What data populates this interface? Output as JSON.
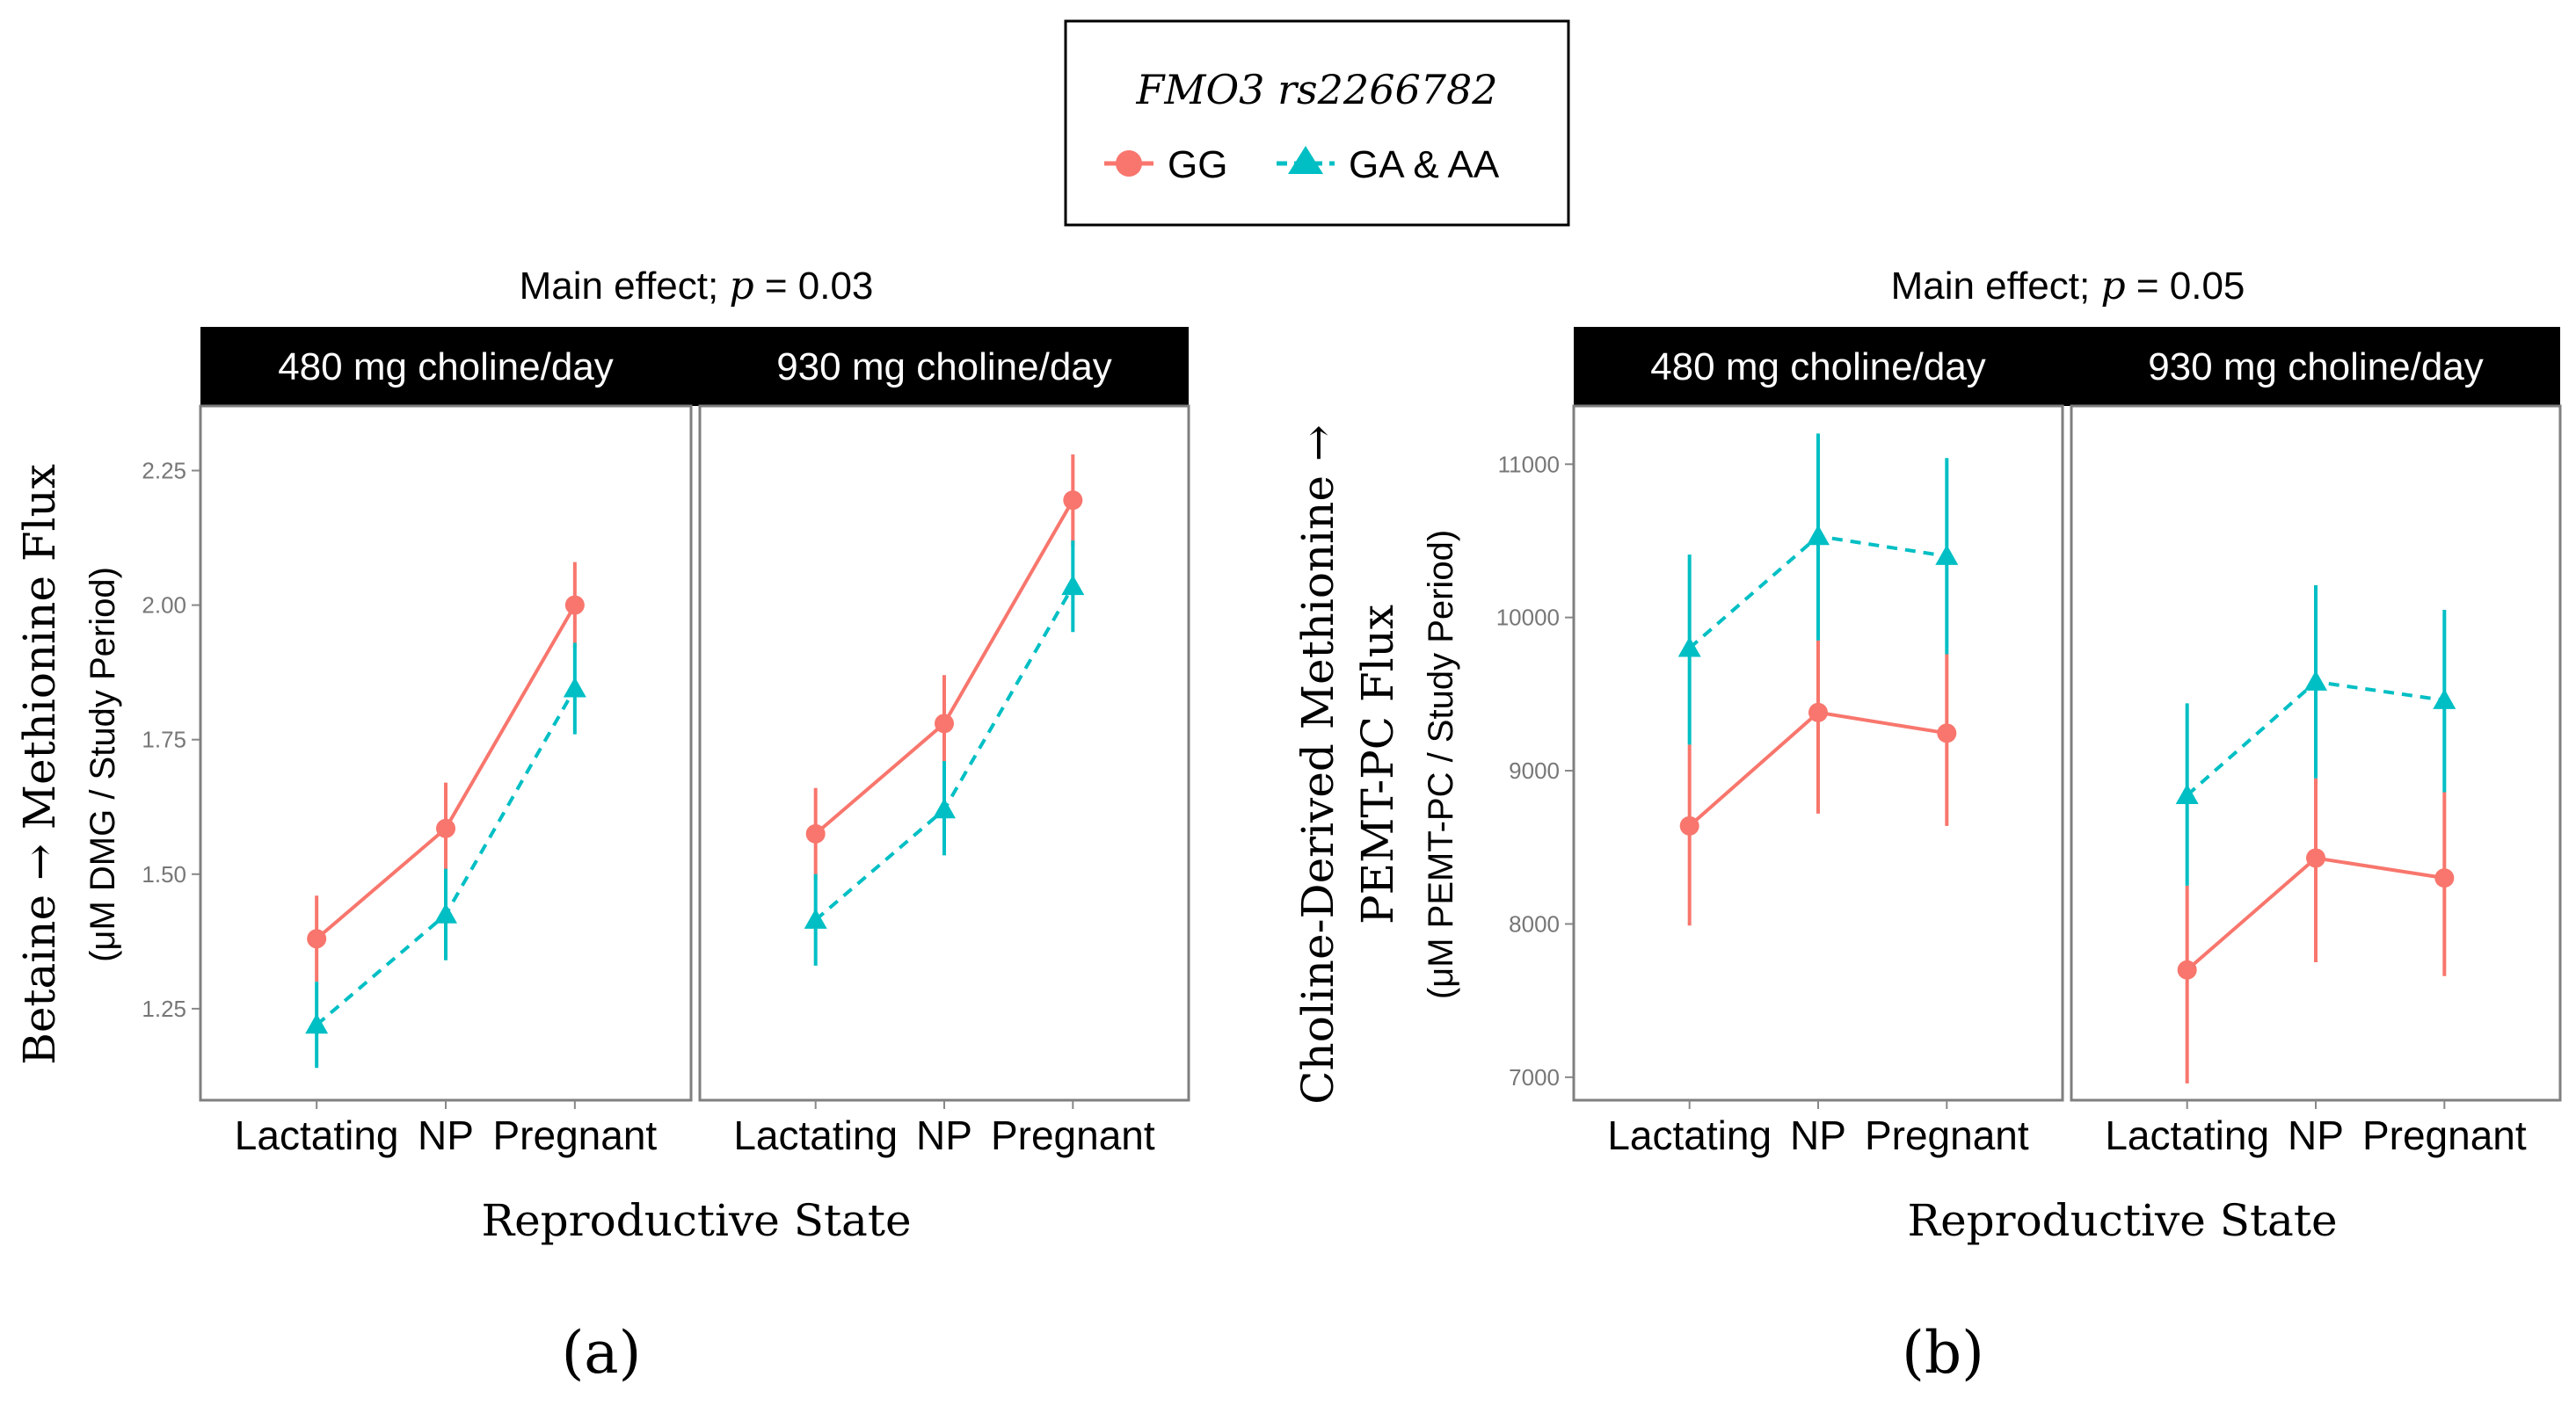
{
  "legend": {
    "title": "FMO3 rs2266782",
    "entries": [
      {
        "label": "GG",
        "color": "#F8766D",
        "marker": "circle",
        "line": "solid"
      },
      {
        "label": "GA & AA",
        "color": "#00BFC4",
        "marker": "triangle",
        "line": "dashed"
      }
    ]
  },
  "chart_data": [
    {
      "type": "line",
      "panel_label": "(a)",
      "title_prefix": "Main effect; ",
      "title_p": "p",
      "title_suffix": " = 0.03",
      "facets": [
        "480 mg choline/day",
        "930 mg choline/day"
      ],
      "categories": [
        "Lactating",
        "NP",
        "Pregnant"
      ],
      "xlabel": "Reproductive State",
      "ylabel_main": "Betaine → Methionine Flux",
      "ylabel_sub": "(μM DMG / Study Period)",
      "ylim": [
        1.08,
        2.37
      ],
      "yticks": [
        1.25,
        1.5,
        1.75,
        2.0,
        2.25
      ],
      "ytick_labels": [
        "1.25",
        "1.50",
        "1.75",
        "2.00",
        "2.25"
      ],
      "series": [
        {
          "name": "GG",
          "facets": [
            {
              "values": [
                1.38,
                1.585,
                2.0
              ],
              "lower": [
                1.3,
                1.5,
                1.92
              ],
              "upper": [
                1.46,
                1.67,
                2.08
              ]
            },
            {
              "values": [
                1.575,
                1.78,
                2.195
              ],
              "lower": [
                1.49,
                1.69,
                2.11
              ],
              "upper": [
                1.66,
                1.87,
                2.28
              ]
            }
          ]
        },
        {
          "name": "GA & AA",
          "facets": [
            {
              "values": [
                1.22,
                1.425,
                1.845
              ],
              "lower": [
                1.14,
                1.34,
                1.76
              ],
              "upper": [
                1.3,
                1.51,
                1.93
              ]
            },
            {
              "values": [
                1.415,
                1.62,
                2.035
              ],
              "lower": [
                1.33,
                1.535,
                1.95
              ],
              "upper": [
                1.5,
                1.71,
                2.12
              ]
            }
          ]
        }
      ]
    },
    {
      "type": "line",
      "panel_label": "(b)",
      "title_prefix": "Main effect; ",
      "title_p": "p",
      "title_suffix": " = 0.05",
      "facets": [
        "480 mg choline/day",
        "930 mg choline/day"
      ],
      "categories": [
        "Lactating",
        "NP",
        "Pregnant"
      ],
      "xlabel": "Reproductive State",
      "ylabel_main": "Choline-Derived Methionine →",
      "ylabel_main2": "PEMT-PC Flux",
      "ylabel_sub": "(μM PEMT-PC / Study Period)",
      "ylim": [
        6850,
        11380
      ],
      "yticks": [
        7000,
        8000,
        9000,
        10000,
        11000
      ],
      "ytick_labels": [
        "7000",
        "8000",
        "9000",
        "10000",
        "11000"
      ],
      "series": [
        {
          "name": "GG",
          "facets": [
            {
              "values": [
                8640,
                9380,
                9245
              ],
              "lower": [
                7990,
                8720,
                8640
              ],
              "upper": [
                9170,
                9850,
                9760
              ]
            },
            {
              "values": [
                7700,
                8430,
                8300
              ],
              "lower": [
                6960,
                7750,
                7660
              ],
              "upper": [
                8250,
                8950,
                8860
              ]
            }
          ]
        },
        {
          "name": "GA & AA",
          "facets": [
            {
              "values": [
                9800,
                10530,
                10400
              ],
              "lower": [
                9170,
                9850,
                9760
              ],
              "upper": [
                10410,
                11200,
                11040
              ]
            },
            {
              "values": [
                8840,
                9580,
                9460
              ],
              "lower": [
                8250,
                8950,
                8860
              ],
              "upper": [
                9440,
                10210,
                10050
              ]
            }
          ]
        }
      ]
    }
  ]
}
